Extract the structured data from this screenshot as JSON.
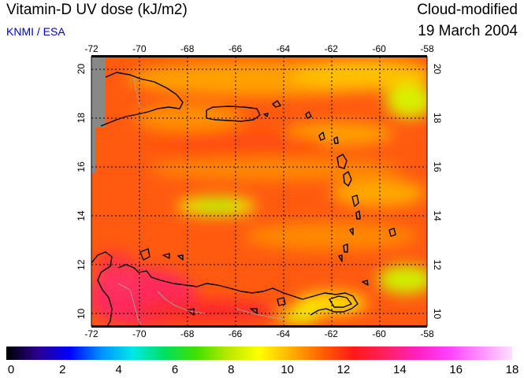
{
  "header": {
    "title": "Vitamin-D UV dose (kJ/m2)",
    "source": "KNMI / ESA",
    "condition": "Cloud-modified",
    "date": "19 March 2004"
  },
  "map": {
    "lon_range": [
      -72,
      -58
    ],
    "lat_range": [
      9.5,
      20.5
    ],
    "lon_ticks": [
      "-72",
      "-70",
      "-68",
      "-66",
      "-64",
      "-62",
      "-60",
      "-58"
    ],
    "lat_ticks": [
      "10",
      "12",
      "14",
      "16",
      "18",
      "20"
    ],
    "grid": true
  },
  "colorbar": {
    "min": 0,
    "max": 18,
    "ticks": [
      "0",
      "2",
      "4",
      "6",
      "8",
      "10",
      "12",
      "14",
      "16",
      "18"
    ],
    "colors": [
      "#000000",
      "#2a0090",
      "#0000ff",
      "#0090ff",
      "#00e8e8",
      "#00e060",
      "#40e000",
      "#b8e800",
      "#ffff00",
      "#ffb000",
      "#ff6000",
      "#ff1818",
      "#ff2060",
      "#ff20c0",
      "#ff40ff",
      "#ff90ff",
      "#ffe0ff"
    ]
  }
}
